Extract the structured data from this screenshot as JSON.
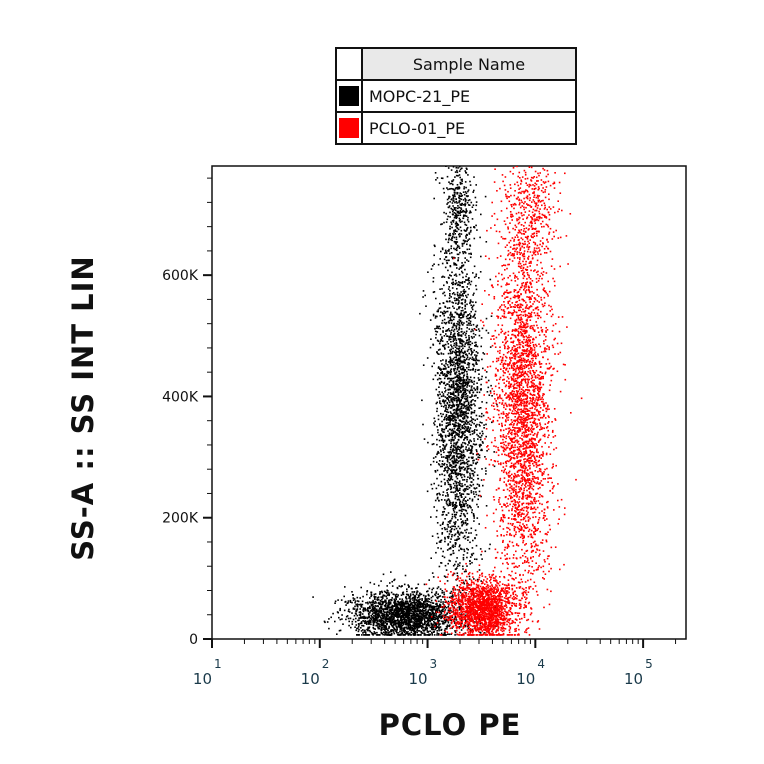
{
  "legend": {
    "header": "Sample Name",
    "entries": [
      {
        "label": "MOPC-21_PE",
        "color": "#000000"
      },
      {
        "label": "PCLO-01_PE",
        "color": "#ff0000"
      }
    ]
  },
  "chart_data": {
    "type": "scatter",
    "xlabel": "PCLO PE",
    "ylabel": "SS-A :: SS INT LIN",
    "x_scale": "log",
    "xlim": [
      10,
      250000
    ],
    "ylim": [
      0,
      780000
    ],
    "x_ticks": [
      {
        "value": 10,
        "base": "10",
        "exp": "1"
      },
      {
        "value": 100,
        "base": "10",
        "exp": "2"
      },
      {
        "value": 1000,
        "base": "10",
        "exp": "3"
      },
      {
        "value": 10000,
        "base": "10",
        "exp": "4"
      },
      {
        "value": 100000,
        "base": "10",
        "exp": "5"
      }
    ],
    "y_ticks": [
      {
        "value": 0,
        "label": "0"
      },
      {
        "value": 200000,
        "label": "200K"
      },
      {
        "value": 400000,
        "label": "400K"
      },
      {
        "value": 600000,
        "label": "600K"
      }
    ],
    "series": [
      {
        "name": "MOPC-21_PE",
        "color": "#000000",
        "populations": [
          {
            "x_center": 600,
            "x_log_sd": 0.2,
            "y_center": 40000,
            "y_sd": 20000,
            "n": 2200
          },
          {
            "x_center": 1900,
            "x_log_sd": 0.08,
            "y_center": 380000,
            "y_sd": 140000,
            "n": 2600
          },
          {
            "x_center": 1900,
            "x_log_sd": 0.06,
            "y_center": 720000,
            "y_sd": 40000,
            "n": 300
          }
        ]
      },
      {
        "name": "PCLO-01_PE",
        "color": "#ff0000",
        "populations": [
          {
            "x_center": 3200,
            "x_log_sd": 0.12,
            "y_center": 50000,
            "y_sd": 25000,
            "n": 1800
          },
          {
            "x_center": 7500,
            "x_log_sd": 0.1,
            "y_center": 380000,
            "y_sd": 150000,
            "n": 2800
          },
          {
            "x_center": 9000,
            "x_log_sd": 0.1,
            "y_center": 710000,
            "y_sd": 50000,
            "n": 400
          }
        ]
      }
    ]
  }
}
